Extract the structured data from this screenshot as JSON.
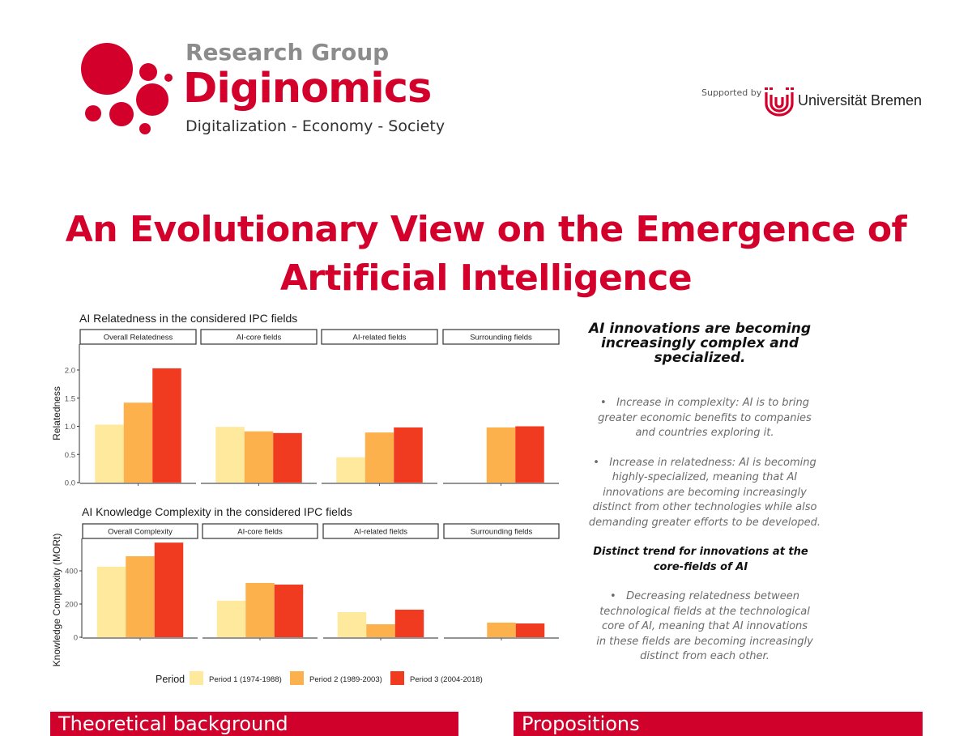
{
  "header": {
    "logo": {
      "research_group": "Research Group",
      "name": "Diginomics",
      "tagline": "Digitalization - Economy - Society",
      "icon": "red-dots-logo-icon"
    },
    "supporter": {
      "label": "Supported by",
      "name": "Universität Bremen",
      "icon": "universitat-bremen-logo-icon"
    }
  },
  "title": {
    "line1": "An Evolutionary View on the Emergence of",
    "line2": "Artificial Intelligence"
  },
  "colors": {
    "brand_red": "#d4002c",
    "period1": "#fee99d",
    "period2": "#fdb14c",
    "period3": "#f03b20"
  },
  "chart_data": [
    {
      "type": "bar",
      "title": "AI Relatedness in the considered IPC fields",
      "xlabel": "",
      "ylabel": "Relatedness",
      "ylim": [
        0,
        2.4
      ],
      "yticks": [
        "0.0",
        "0.5",
        "1.0",
        "1.5",
        "2.0"
      ],
      "ytick_values": [
        0,
        0.5,
        1.0,
        1.5,
        2.0
      ],
      "grid": false,
      "facets": [
        "Overall Relatedness",
        "AI-core fields",
        "AI-related fields",
        "Surrounding fields"
      ],
      "series": [
        {
          "name": "Period 1 (1974-1988)",
          "values": [
            1.03,
            0.99,
            0.45,
            null
          ]
        },
        {
          "name": "Period 2 (1989-2003)",
          "values": [
            1.42,
            0.91,
            0.89,
            0.98
          ]
        },
        {
          "name": "Period 3 (2004-2018)",
          "values": [
            2.03,
            0.88,
            0.98,
            1.0
          ]
        }
      ]
    },
    {
      "type": "bar",
      "title": "AI Knowledge Complexity in the considered IPC fields",
      "xlabel": "",
      "ylabel": "Knowledge Complexity (MORt)",
      "ylim": [
        0,
        600
      ],
      "yticks": [
        "0",
        "200",
        "400"
      ],
      "ytick_values": [
        0,
        200,
        400
      ],
      "grid": false,
      "facets": [
        "Overall Complexity",
        "AI-core fields",
        "AI-related fields",
        "Surrounding fields"
      ],
      "series": [
        {
          "name": "Period 1 (1974-1988)",
          "values": [
            425,
            220,
            151,
            null
          ]
        },
        {
          "name": "Period 2 (1989-2003)",
          "values": [
            488,
            327,
            78,
            88
          ]
        },
        {
          "name": "Period 3 (2004-2018)",
          "values": [
            570,
            317,
            166,
            83
          ]
        }
      ]
    }
  ],
  "legend": {
    "title": "Period",
    "placement": "bottom",
    "items": [
      "Period 1 (1974-1988)",
      "Period 2 (1989-2003)",
      "Period 3 (2004-2018)"
    ]
  },
  "findings": {
    "headline": "AI innovations are becoming increasingly complex and specialized.",
    "bullets": [
      "Increase in complexity: AI is to bring greater economic benefits to companies and countries exploring it.",
      "Increase in relatedness: AI is becoming highly-specialized, meaning that AI innovations are becoming increasingly distinct from other technologies while also demanding greater efforts to be developed."
    ],
    "subheading": "Distinct trend for innovations at the core-fields of AI",
    "sub_bullets": [
      "Decreasing relatedness between technological fields at the technological core of AI, meaning that AI innovations in these fields are becoming increasingly distinct from each other."
    ]
  },
  "sections": {
    "left": "Theoretical background",
    "right": "Propositions"
  }
}
